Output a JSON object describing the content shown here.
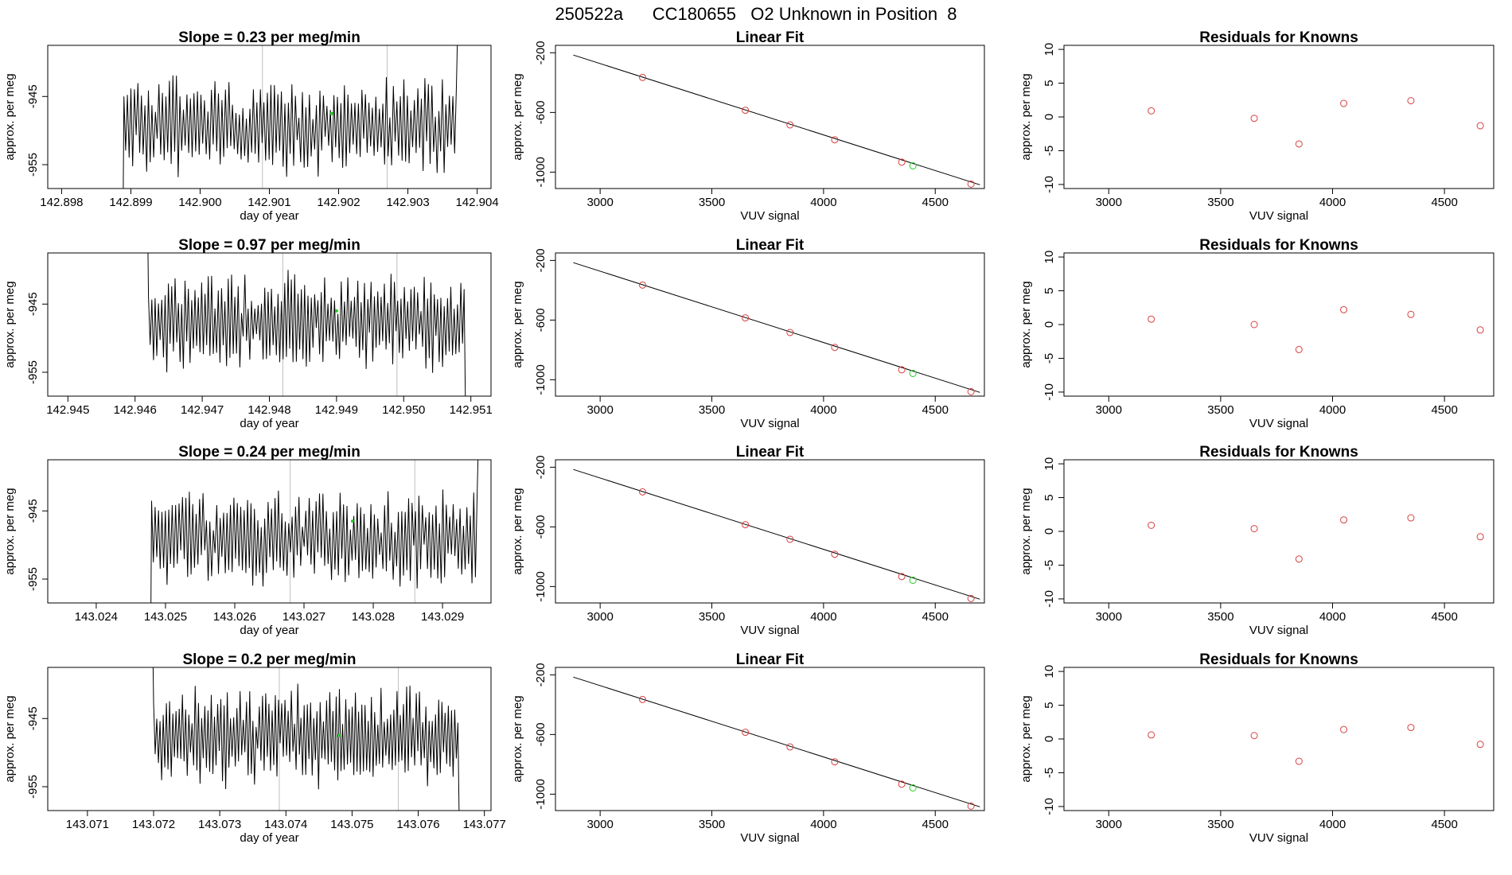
{
  "figure": {
    "title": "250522a      CC180655   O2 Unknown in Position  8",
    "colors": {
      "known": "#d94040",
      "unknown": "#22cc22",
      "line": "#000000",
      "vline": "#bfbfbf"
    }
  },
  "rows": [
    {
      "ts": {
        "title": "Slope =  0.23  per meg/min",
        "xlabel": "day of year",
        "ylabel": "approx. per meg",
        "xlim": [
          142.8978,
          142.9042
        ],
        "ylim": [
          -958.5,
          -937.5
        ],
        "xticks": [
          142.898,
          142.899,
          142.9,
          142.901,
          142.902,
          142.903,
          142.904
        ],
        "xtick_labels": [
          "142.898",
          "142.899",
          "142.900",
          "142.901",
          "142.902",
          "142.903",
          "142.904"
        ],
        "yticks": [
          -945,
          -955
        ],
        "ytick_labels": [
          "-945",
          "-955"
        ],
        "start": 142.8989,
        "end": 142.9037,
        "flat_from": 142.8978,
        "vlines": [
          142.9009,
          142.9027
        ],
        "center": -949.5,
        "amp": 6.5,
        "tail": "up",
        "seed": 3,
        "green": {
          "x": 142.9019,
          "y": -947.5
        }
      },
      "fit": {
        "title": "Linear Fit",
        "xlabel": "VUV signal",
        "ylabel": "approx. per meg",
        "xlim": [
          2800,
          4720
        ],
        "ylim": [
          -1110,
          -150
        ],
        "xticks": [
          3000,
          3500,
          4000,
          4500
        ],
        "xtick_labels": [
          "3000",
          "3500",
          "4000",
          "4500"
        ],
        "yticks": [
          -200,
          -600,
          -1000
        ],
        "ytick_labels": [
          "-200",
          "-600",
          "-1000"
        ],
        "line": {
          "x": [
            2880,
            4700
          ],
          "y": [
            -215,
            -1085
          ]
        },
        "knowns": {
          "x": [
            3190,
            3650,
            3850,
            4050,
            4350,
            4660
          ],
          "y": [
            -365,
            -585,
            -683,
            -783,
            -933,
            -1080
          ]
        },
        "unknown": {
          "x": 4400,
          "y": -958
        }
      },
      "res": {
        "title": "Residuals for Knowns",
        "xlabel": "VUV signal",
        "ylabel": "approx. per meg",
        "xlim": [
          2800,
          4720
        ],
        "ylim": [
          -10.6,
          10.6
        ],
        "xticks": [
          3000,
          3500,
          4000,
          4500
        ],
        "xtick_labels": [
          "3000",
          "3500",
          "4000",
          "4500"
        ],
        "yticks": [
          10,
          5,
          0,
          -5,
          -10
        ],
        "ytick_labels": [
          "10",
          "5",
          "0",
          "-5",
          "-10"
        ],
        "x": [
          3190,
          3650,
          3850,
          4050,
          4350,
          4660
        ],
        "y": [
          0.9,
          -0.2,
          -4.0,
          2.0,
          2.4,
          -1.3
        ]
      }
    },
    {
      "ts": {
        "title": "Slope =  0.97  per meg/min",
        "xlabel": "day of year",
        "ylabel": "approx. per meg",
        "xlim": [
          142.9447,
          142.9513
        ],
        "ylim": [
          -958.5,
          -937.5
        ],
        "xticks": [
          142.945,
          142.946,
          142.947,
          142.948,
          142.949,
          142.95,
          142.951
        ],
        "xtick_labels": [
          "142.945",
          "142.946",
          "142.947",
          "142.948",
          "142.949",
          "142.950",
          "142.951"
        ],
        "yticks": [
          -945,
          -955
        ],
        "ytick_labels": [
          "-945",
          "-955"
        ],
        "start": 142.9462,
        "end": 142.9509,
        "flat_from": null,
        "vlines": [
          142.9482,
          142.9499
        ],
        "center": -947.5,
        "amp": 6.5,
        "tail": "down",
        "seed": 7,
        "green": {
          "x": 142.949,
          "y": -946
        }
      },
      "fit": {
        "title": "Linear Fit",
        "xlabel": "VUV signal",
        "ylabel": "approx. per meg",
        "xlim": [
          2800,
          4720
        ],
        "ylim": [
          -1110,
          -150
        ],
        "xticks": [
          3000,
          3500,
          4000,
          4500
        ],
        "xtick_labels": [
          "3000",
          "3500",
          "4000",
          "4500"
        ],
        "yticks": [
          -200,
          -600,
          -1000
        ],
        "ytick_labels": [
          "-200",
          "-600",
          "-1000"
        ],
        "line": {
          "x": [
            2880,
            4700
          ],
          "y": [
            -215,
            -1085
          ]
        },
        "knowns": {
          "x": [
            3190,
            3650,
            3850,
            4050,
            4350,
            4660
          ],
          "y": [
            -365,
            -585,
            -683,
            -783,
            -933,
            -1080
          ]
        },
        "unknown": {
          "x": 4400,
          "y": -958
        }
      },
      "res": {
        "title": "Residuals for Knowns",
        "xlabel": "VUV signal",
        "ylabel": "approx. per meg",
        "xlim": [
          2800,
          4720
        ],
        "ylim": [
          -10.6,
          10.6
        ],
        "xticks": [
          3000,
          3500,
          4000,
          4500
        ],
        "xtick_labels": [
          "3000",
          "3500",
          "4000",
          "4500"
        ],
        "yticks": [
          10,
          5,
          0,
          -5,
          -10
        ],
        "ytick_labels": [
          "10",
          "5",
          "0",
          "-5",
          "-10"
        ],
        "x": [
          3190,
          3650,
          3850,
          4050,
          4350,
          4660
        ],
        "y": [
          0.8,
          0.0,
          -3.7,
          2.2,
          1.5,
          -0.8
        ]
      }
    },
    {
      "ts": {
        "title": "Slope =  0.24  per meg/min",
        "xlabel": "day of year",
        "ylabel": "approx. per meg",
        "xlim": [
          143.0233,
          143.0297
        ],
        "ylim": [
          -958.5,
          -937.5
        ],
        "xticks": [
          143.024,
          143.025,
          143.026,
          143.027,
          143.028,
          143.029
        ],
        "xtick_labels": [
          "143.024",
          "143.025",
          "143.026",
          "143.027",
          "143.028",
          "143.029"
        ],
        "yticks": [
          -945,
          -955
        ],
        "ytick_labels": [
          "-945",
          "-955"
        ],
        "start": 143.0248,
        "end": 143.0295,
        "flat_from": 143.0233,
        "vlines": [
          143.0268,
          143.0286
        ],
        "center": -949.0,
        "amp": 6.5,
        "tail": "up",
        "seed": 11,
        "green": {
          "x": 143.0277,
          "y": -946.5
        }
      },
      "fit": {
        "title": "Linear Fit",
        "xlabel": "VUV signal",
        "ylabel": "approx. per meg",
        "xlim": [
          2800,
          4720
        ],
        "ylim": [
          -1110,
          -150
        ],
        "xticks": [
          3000,
          3500,
          4000,
          4500
        ],
        "xtick_labels": [
          "3000",
          "3500",
          "4000",
          "4500"
        ],
        "yticks": [
          -200,
          -600,
          -1000
        ],
        "ytick_labels": [
          "-200",
          "-600",
          "-1000"
        ],
        "line": {
          "x": [
            2880,
            4700
          ],
          "y": [
            -215,
            -1085
          ]
        },
        "knowns": {
          "x": [
            3190,
            3650,
            3850,
            4050,
            4350,
            4660
          ],
          "y": [
            -365,
            -585,
            -683,
            -783,
            -933,
            -1080
          ]
        },
        "unknown": {
          "x": 4400,
          "y": -958
        }
      },
      "res": {
        "title": "Residuals for Knowns",
        "xlabel": "VUV signal",
        "ylabel": "approx. per meg",
        "xlim": [
          2800,
          4720
        ],
        "ylim": [
          -10.6,
          10.6
        ],
        "xticks": [
          3000,
          3500,
          4000,
          4500
        ],
        "xtick_labels": [
          "3000",
          "3500",
          "4000",
          "4500"
        ],
        "yticks": [
          10,
          5,
          0,
          -5,
          -10
        ],
        "ytick_labels": [
          "10",
          "5",
          "0",
          "-5",
          "-10"
        ],
        "x": [
          3190,
          3650,
          3850,
          4050,
          4350,
          4660
        ],
        "y": [
          0.9,
          0.4,
          -4.1,
          1.7,
          2.0,
          -0.8
        ]
      }
    },
    {
      "ts": {
        "title": "Slope =  0.2  per meg/min",
        "xlabel": "day of year",
        "ylabel": "approx. per meg",
        "xlim": [
          143.0704,
          143.0771
        ],
        "ylim": [
          -958.5,
          -937.5
        ],
        "xticks": [
          143.071,
          143.072,
          143.073,
          143.074,
          143.075,
          143.076,
          143.077
        ],
        "xtick_labels": [
          "143.071",
          "143.072",
          "143.073",
          "143.074",
          "143.075",
          "143.076",
          "143.077"
        ],
        "yticks": [
          -945,
          -955
        ],
        "ytick_labels": [
          "-945",
          "-955"
        ],
        "start": 143.072,
        "end": 143.0766,
        "flat_from": null,
        "vlines": [
          143.0739,
          143.0757
        ],
        "center": -947.5,
        "amp": 6.5,
        "tail": "down",
        "seed": 17,
        "green": {
          "x": 143.0748,
          "y": -947.5
        }
      },
      "fit": {
        "title": "Linear Fit",
        "xlabel": "VUV signal",
        "ylabel": "approx. per meg",
        "xlim": [
          2800,
          4720
        ],
        "ylim": [
          -1110,
          -150
        ],
        "xticks": [
          3000,
          3500,
          4000,
          4500
        ],
        "xtick_labels": [
          "3000",
          "3500",
          "4000",
          "4500"
        ],
        "yticks": [
          -200,
          -600,
          -1000
        ],
        "ytick_labels": [
          "-200",
          "-600",
          "-1000"
        ],
        "line": {
          "x": [
            2880,
            4700
          ],
          "y": [
            -215,
            -1085
          ]
        },
        "knowns": {
          "x": [
            3190,
            3650,
            3850,
            4050,
            4350,
            4660
          ],
          "y": [
            -365,
            -585,
            -683,
            -783,
            -933,
            -1080
          ]
        },
        "unknown": {
          "x": 4400,
          "y": -958
        }
      },
      "res": {
        "title": "Residuals for Knowns",
        "xlabel": "VUV signal",
        "ylabel": "approx. per meg",
        "xlim": [
          2800,
          4720
        ],
        "ylim": [
          -10.6,
          10.6
        ],
        "xticks": [
          3000,
          3500,
          4000,
          4500
        ],
        "xtick_labels": [
          "3000",
          "3500",
          "4000",
          "4500"
        ],
        "yticks": [
          10,
          5,
          0,
          -5,
          -10
        ],
        "ytick_labels": [
          "10",
          "5",
          "0",
          "-5",
          "-10"
        ],
        "x": [
          3190,
          3650,
          3850,
          4050,
          4350,
          4660
        ],
        "y": [
          0.6,
          0.5,
          -3.3,
          1.4,
          1.7,
          -0.8
        ]
      }
    }
  ],
  "chart_data": [
    {
      "type": "line",
      "title": "Slope =  0.23  per meg/min",
      "xlabel": "day of year",
      "ylabel": "approx. per meg",
      "xlim": [
        142.8978,
        142.9042
      ],
      "ylim": [
        -958.5,
        -937.5
      ],
      "note_series": "noisy time series"
    },
    {
      "type": "scatter",
      "title": "Linear Fit",
      "xlabel": "VUV signal",
      "ylabel": "approx. per meg",
      "series": [
        {
          "x": [
            3190,
            3650,
            3850,
            4050,
            4350,
            4660
          ],
          "y": [
            -365,
            -585,
            -683,
            -783,
            -933,
            -1080
          ]
        },
        {
          "x": [
            4400
          ],
          "y": [
            -958
          ]
        }
      ]
    },
    {
      "type": "scatter",
      "title": "Residuals for Knowns",
      "xlabel": "VUV signal",
      "ylabel": "approx. per meg",
      "series": [
        {
          "x": [
            3190,
            3650,
            3850,
            4050,
            4350,
            4660
          ],
          "y": [
            0.9,
            -0.2,
            -4.0,
            2.0,
            2.4,
            -1.3
          ]
        }
      ]
    },
    {
      "type": "line",
      "title": "Slope =  0.97  per meg/min",
      "xlabel": "day of year",
      "ylabel": "approx. per meg",
      "xlim": [
        142.9447,
        142.9513
      ],
      "ylim": [
        -958.5,
        -937.5
      ]
    },
    {
      "type": "scatter",
      "title": "Residuals for Knowns",
      "series": [
        {
          "x": [
            3190,
            3650,
            3850,
            4050,
            4350,
            4660
          ],
          "y": [
            0.8,
            0.0,
            -3.7,
            2.2,
            1.5,
            -0.8
          ]
        }
      ]
    },
    {
      "type": "line",
      "title": "Slope =  0.24  per meg/min",
      "xlabel": "day of year",
      "ylabel": "approx. per meg",
      "xlim": [
        143.0233,
        143.0297
      ],
      "ylim": [
        -958.5,
        -937.5
      ]
    },
    {
      "type": "scatter",
      "title": "Residuals for Knowns",
      "series": [
        {
          "x": [
            3190,
            3650,
            3850,
            4050,
            4350,
            4660
          ],
          "y": [
            0.9,
            0.4,
            -4.1,
            1.7,
            2.0,
            -0.8
          ]
        }
      ]
    },
    {
      "type": "line",
      "title": "Slope =  0.2  per meg/min",
      "xlabel": "day of year",
      "ylabel": "approx. per meg",
      "xlim": [
        143.0704,
        143.0771
      ],
      "ylim": [
        -958.5,
        -937.5
      ]
    },
    {
      "type": "scatter",
      "title": "Residuals for Knowns",
      "series": [
        {
          "x": [
            3190,
            3650,
            3850,
            4050,
            4350,
            4660
          ],
          "y": [
            0.6,
            0.5,
            -3.3,
            1.4,
            1.7,
            -0.8
          ]
        }
      ]
    }
  ]
}
